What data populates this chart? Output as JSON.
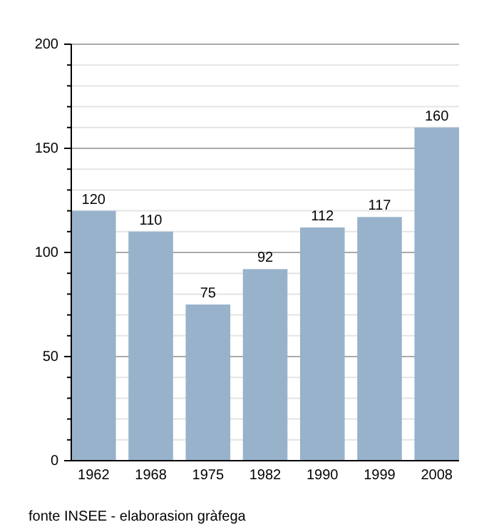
{
  "chart_data": {
    "type": "bar",
    "categories": [
      "1962",
      "1968",
      "1975",
      "1982",
      "1990",
      "1999",
      "2008"
    ],
    "values": [
      120,
      110,
      75,
      92,
      112,
      117,
      160
    ],
    "color": "#98b2cc",
    "data_labels": true,
    "ylim": [
      0,
      200
    ],
    "yticks": [
      0,
      {
        "value": 10,
        "label": null
      },
      {
        "value": 20,
        "label": null
      },
      {
        "value": 30,
        "label": null
      },
      {
        "value": 40,
        "label": null
      },
      50,
      {
        "value": 60,
        "label": null
      },
      {
        "value": 70,
        "label": null
      },
      {
        "value": 80,
        "label": null
      },
      {
        "value": 90,
        "label": null
      },
      100,
      {
        "value": 110,
        "label": null
      },
      {
        "value": 120,
        "label": null
      },
      {
        "value": 130,
        "label": null
      },
      {
        "value": 140,
        "label": null
      },
      150,
      {
        "value": 160,
        "label": null
      },
      {
        "value": 170,
        "label": null
      },
      {
        "value": 180,
        "label": null
      },
      {
        "value": 190,
        "label": null
      },
      200
    ],
    "grid": true,
    "annotations": [
      "fonte INSEE - elaborasion gràfega"
    ]
  }
}
